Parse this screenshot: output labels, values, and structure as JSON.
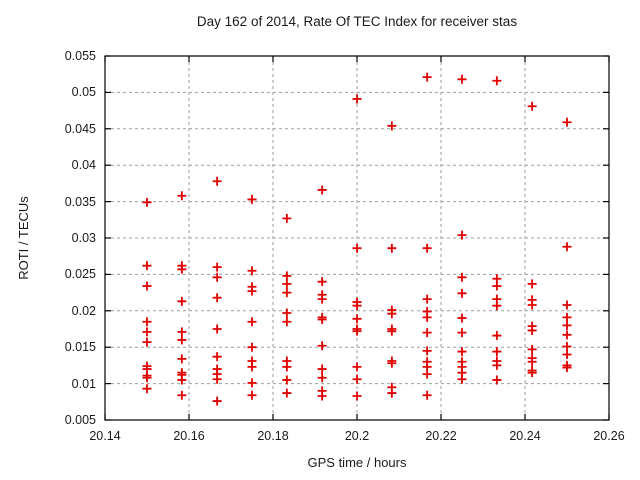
{
  "chart_data": {
    "type": "scatter",
    "title": "Day 162 of 2014, Rate Of TEC Index for receiver stas",
    "xlabel": "GPS time / hours",
    "ylabel": "ROTI / TECUs",
    "xlim": [
      20.14,
      20.26
    ],
    "ylim": [
      0.005,
      0.055
    ],
    "xticks": [
      20.14,
      20.16,
      20.18,
      20.2,
      20.22,
      20.24,
      20.26
    ],
    "xtick_labels": [
      "20.14",
      "20.16",
      "20.18",
      "20.2",
      "20.22",
      "20.24",
      "20.26"
    ],
    "yticks": [
      0.005,
      0.01,
      0.015,
      0.02,
      0.025,
      0.03,
      0.035,
      0.04,
      0.045,
      0.05,
      0.055
    ],
    "ytick_labels": [
      "0.005",
      "0.01",
      "0.015",
      "0.02",
      "0.025",
      "0.03",
      "0.035",
      "0.04",
      "0.045",
      "0.05",
      "0.055"
    ],
    "grid": true,
    "legend": "none",
    "marker_shape": "plus",
    "marker_color": "#e00000",
    "grid_color": "#9e9e9e",
    "frame_color": "#000000",
    "series": [
      {
        "name": "ROTI",
        "points": [
          [
            20.15,
            0.0349
          ],
          [
            20.15,
            0.0262
          ],
          [
            20.15,
            0.0234
          ],
          [
            20.15,
            0.0185
          ],
          [
            20.15,
            0.0171
          ],
          [
            20.15,
            0.0157
          ],
          [
            20.15,
            0.0124
          ],
          [
            20.15,
            0.012
          ],
          [
            20.15,
            0.0111
          ],
          [
            20.15,
            0.0108
          ],
          [
            20.15,
            0.0093
          ],
          [
            20.1583,
            0.0358
          ],
          [
            20.1583,
            0.0262
          ],
          [
            20.1583,
            0.0257
          ],
          [
            20.1583,
            0.0213
          ],
          [
            20.1583,
            0.0171
          ],
          [
            20.1583,
            0.016
          ],
          [
            20.1583,
            0.0134
          ],
          [
            20.1583,
            0.0115
          ],
          [
            20.1583,
            0.0112
          ],
          [
            20.1583,
            0.0105
          ],
          [
            20.1583,
            0.0084
          ],
          [
            20.1667,
            0.0378
          ],
          [
            20.1667,
            0.026
          ],
          [
            20.1667,
            0.0246
          ],
          [
            20.1667,
            0.0218
          ],
          [
            20.1667,
            0.0175
          ],
          [
            20.1667,
            0.0137
          ],
          [
            20.1667,
            0.012
          ],
          [
            20.1667,
            0.0113
          ],
          [
            20.1667,
            0.0106
          ],
          [
            20.1667,
            0.0076
          ],
          [
            20.175,
            0.0353
          ],
          [
            20.175,
            0.0255
          ],
          [
            20.175,
            0.0233
          ],
          [
            20.175,
            0.0227
          ],
          [
            20.175,
            0.0185
          ],
          [
            20.175,
            0.015
          ],
          [
            20.175,
            0.0131
          ],
          [
            20.175,
            0.0123
          ],
          [
            20.175,
            0.0101
          ],
          [
            20.175,
            0.0084
          ],
          [
            20.1833,
            0.0327
          ],
          [
            20.1833,
            0.0248
          ],
          [
            20.1833,
            0.0237
          ],
          [
            20.1833,
            0.0225
          ],
          [
            20.1833,
            0.0197
          ],
          [
            20.1833,
            0.0185
          ],
          [
            20.1833,
            0.0131
          ],
          [
            20.1833,
            0.0123
          ],
          [
            20.1833,
            0.0105
          ],
          [
            20.1833,
            0.0087
          ],
          [
            20.1917,
            0.0366
          ],
          [
            20.1917,
            0.024
          ],
          [
            20.1917,
            0.0222
          ],
          [
            20.1917,
            0.0216
          ],
          [
            20.1917,
            0.0191
          ],
          [
            20.1917,
            0.0188
          ],
          [
            20.1917,
            0.0152
          ],
          [
            20.1917,
            0.012
          ],
          [
            20.1917,
            0.0108
          ],
          [
            20.1917,
            0.009
          ],
          [
            20.1917,
            0.0083
          ],
          [
            20.2,
            0.0491
          ],
          [
            20.2,
            0.0286
          ],
          [
            20.2,
            0.0212
          ],
          [
            20.2,
            0.0207
          ],
          [
            20.2,
            0.0189
          ],
          [
            20.2,
            0.0175
          ],
          [
            20.2,
            0.0172
          ],
          [
            20.2,
            0.0123
          ],
          [
            20.2,
            0.0106
          ],
          [
            20.2,
            0.0083
          ],
          [
            20.2083,
            0.0454
          ],
          [
            20.2083,
            0.0286
          ],
          [
            20.2083,
            0.0201
          ],
          [
            20.2083,
            0.0196
          ],
          [
            20.2083,
            0.0175
          ],
          [
            20.2083,
            0.0172
          ],
          [
            20.2083,
            0.0131
          ],
          [
            20.2083,
            0.0128
          ],
          [
            20.2083,
            0.0095
          ],
          [
            20.2083,
            0.0087
          ],
          [
            20.2167,
            0.0521
          ],
          [
            20.2167,
            0.0286
          ],
          [
            20.2167,
            0.0216
          ],
          [
            20.2167,
            0.0199
          ],
          [
            20.2167,
            0.0191
          ],
          [
            20.2167,
            0.017
          ],
          [
            20.2167,
            0.0145
          ],
          [
            20.2167,
            0.013
          ],
          [
            20.2167,
            0.0123
          ],
          [
            20.2167,
            0.0113
          ],
          [
            20.2167,
            0.0084
          ],
          [
            20.225,
            0.0518
          ],
          [
            20.225,
            0.0304
          ],
          [
            20.225,
            0.0246
          ],
          [
            20.225,
            0.0224
          ],
          [
            20.225,
            0.019
          ],
          [
            20.225,
            0.017
          ],
          [
            20.225,
            0.0144
          ],
          [
            20.225,
            0.013
          ],
          [
            20.225,
            0.0123
          ],
          [
            20.225,
            0.0115
          ],
          [
            20.225,
            0.0106
          ],
          [
            20.2333,
            0.0516
          ],
          [
            20.2333,
            0.0244
          ],
          [
            20.2333,
            0.0234
          ],
          [
            20.2333,
            0.0216
          ],
          [
            20.2333,
            0.0207
          ],
          [
            20.2333,
            0.0166
          ],
          [
            20.2333,
            0.0144
          ],
          [
            20.2333,
            0.0131
          ],
          [
            20.2333,
            0.0125
          ],
          [
            20.2333,
            0.0105
          ],
          [
            20.2417,
            0.0481
          ],
          [
            20.2417,
            0.0237
          ],
          [
            20.2417,
            0.0215
          ],
          [
            20.2417,
            0.0208
          ],
          [
            20.2417,
            0.0179
          ],
          [
            20.2417,
            0.0173
          ],
          [
            20.2417,
            0.0147
          ],
          [
            20.2417,
            0.0135
          ],
          [
            20.2417,
            0.013
          ],
          [
            20.2417,
            0.0118
          ],
          [
            20.2417,
            0.0115
          ],
          [
            20.25,
            0.0459
          ],
          [
            20.25,
            0.0288
          ],
          [
            20.25,
            0.0208
          ],
          [
            20.25,
            0.0191
          ],
          [
            20.25,
            0.018
          ],
          [
            20.25,
            0.0167
          ],
          [
            20.25,
            0.0151
          ],
          [
            20.25,
            0.014
          ],
          [
            20.25,
            0.0125
          ],
          [
            20.25,
            0.0122
          ]
        ]
      }
    ]
  }
}
